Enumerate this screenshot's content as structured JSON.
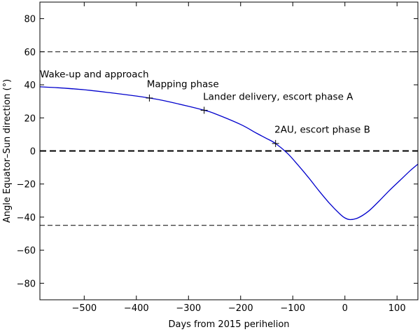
{
  "chart_data": {
    "type": "line",
    "title": "",
    "xlabel": "Days from 2015 perihelion",
    "ylabel": "Angle Equator–Sun direction (°)",
    "xlim": [
      -585,
      140
    ],
    "ylim": [
      -90,
      90
    ],
    "xticks": [
      -500,
      -400,
      -300,
      -200,
      -100,
      0,
      100
    ],
    "yticks": [
      -80,
      -60,
      -40,
      -20,
      0,
      20,
      40,
      60,
      80
    ],
    "grid": false,
    "series": [
      {
        "name": "Angle Equator–Sun direction",
        "color": "#0000cc",
        "x": [
          -585,
          -550,
          -500,
          -450,
          -400,
          -375,
          -350,
          -300,
          -270,
          -250,
          -200,
          -170,
          -150,
          -133,
          -110,
          -90,
          -70,
          -50,
          -30,
          -10,
          0,
          10,
          25,
          45,
          65,
          85,
          105,
          125,
          140
        ],
        "y": [
          38.8,
          38.2,
          37.0,
          35.2,
          33.2,
          32.0,
          30.6,
          27.0,
          24.6,
          22.6,
          16.0,
          10.8,
          7.5,
          4.5,
          -1.5,
          -8.5,
          -16.0,
          -24.0,
          -31.5,
          -38.0,
          -40.5,
          -41.5,
          -40.5,
          -36.5,
          -30.5,
          -24.0,
          -18.0,
          -12.0,
          -8.0
        ]
      }
    ],
    "reference_lines": [
      {
        "y": 60,
        "style": "dashed",
        "weight": "thin"
      },
      {
        "y": 0,
        "style": "dashed",
        "weight": "thick"
      },
      {
        "y": -45,
        "style": "dashed",
        "weight": "thin"
      }
    ],
    "markers": [
      {
        "x": -375,
        "y": 32.0
      },
      {
        "x": -270,
        "y": 24.6
      },
      {
        "x": -133,
        "y": 4.5
      }
    ],
    "annotations": [
      {
        "text": "Wake-up and approach",
        "x": -585,
        "y": 44.5
      },
      {
        "text": "Mapping phase",
        "x": -380,
        "y": 38.5
      },
      {
        "text": "Lander delivery, escort phase A",
        "x": -272,
        "y": 31.0
      },
      {
        "text": "2AU, escort phase B",
        "x": -135,
        "y": 11.0
      }
    ]
  }
}
